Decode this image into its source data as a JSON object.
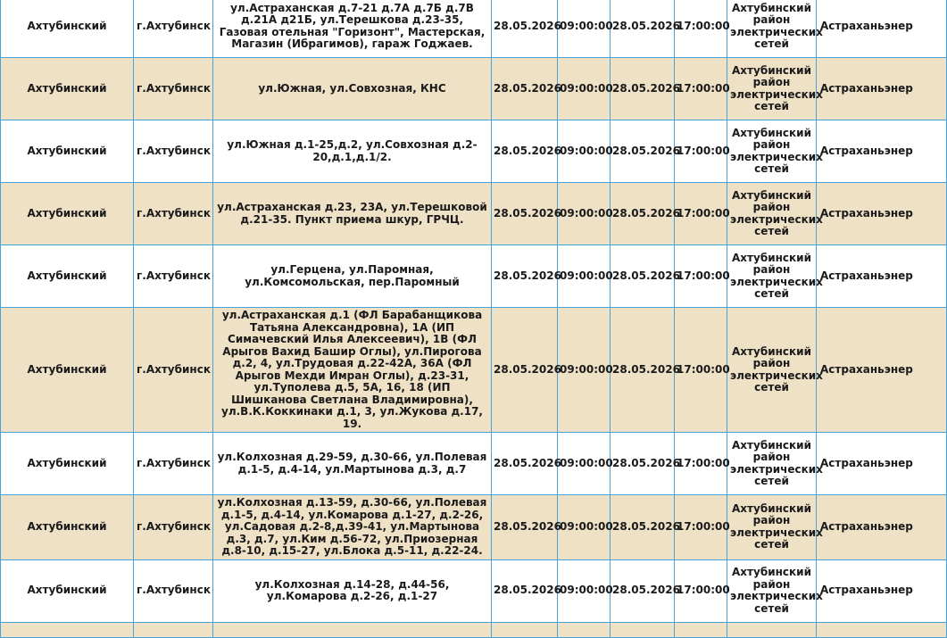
{
  "rows": [
    {
      "district": "Ахтубинский",
      "city": "г.Ахтубинск",
      "address": "ул.Астраханская д.7-21 д.7А д.7Б д.7В д.21А д21Б, ул.Терешкова д.23-35, Газовая отельная \"Горизонт\", Мастерская, Магазин (Ибрагимов), гараж Годжаев.",
      "start_date": "28.05.2026",
      "start_time": "09:00:00",
      "end_date": "28.05.2026",
      "end_time": "17:00:00",
      "network": "Ахтубинский район электрических сетей",
      "org": "Астраханьэнер"
    },
    {
      "district": "Ахтубинский",
      "city": "г.Ахтубинск",
      "address": "ул.Южная, ул.Совхозная, КНС",
      "start_date": "28.05.2026",
      "start_time": "09:00:00",
      "end_date": "28.05.2026",
      "end_time": "17:00:00",
      "network": "Ахтубинский район электрических сетей",
      "org": "Астраханьэнер"
    },
    {
      "district": "Ахтубинский",
      "city": "г.Ахтубинск",
      "address": "ул.Южная д.1-25,д.2, ул.Совхозная д.2-20,д.1,д.1/2.",
      "start_date": "28.05.2026",
      "start_time": "09:00:00",
      "end_date": "28.05.2026",
      "end_time": "17:00:00",
      "network": "Ахтубинский район электрических сетей",
      "org": "Астраханьэнер"
    },
    {
      "district": "Ахтубинский",
      "city": "г.Ахтубинск",
      "address": "ул.Астраханская д.23, 23А, ул.Терешковой д.21-35. Пункт приема шкур, ГРЧЦ.",
      "start_date": "28.05.2026",
      "start_time": "09:00:00",
      "end_date": "28.05.2026",
      "end_time": "17:00:00",
      "network": "Ахтубинский район электрических сетей",
      "org": "Астраханьэнер"
    },
    {
      "district": "Ахтубинский",
      "city": "г.Ахтубинск",
      "address": "ул.Герцена, ул.Паромная, ул.Комсомольская, пер.Паромный",
      "start_date": "28.05.2026",
      "start_time": "09:00:00",
      "end_date": "28.05.2026",
      "end_time": "17:00:00",
      "network": "Ахтубинский район электрических сетей",
      "org": "Астраханьэнер"
    },
    {
      "district": "Ахтубинский",
      "city": "г.Ахтубинск",
      "address": "ул.Астраханская д.1 (ФЛ Барабанщикова Татьяна Александровна), 1А (ИП Симачевский Илья Алексеевич), 1В (ФЛ Арыгов Вахид Башир Оглы), ул.Пирогова д.2, 4, ул.Трудовая д.22-42А, 36А (ФЛ Арыгов Мехди Имран Оглы), д.23-31, ул.Туполева д.5, 5А, 16, 18 (ИП Шишканова Светлана Владимировна), ул.В.К.Коккинаки д.1, 3, ул.Жукова д.17, 19.",
      "start_date": "28.05.2026",
      "start_time": "09:00:00",
      "end_date": "28.05.2026",
      "end_time": "17:00:00",
      "network": "Ахтубинский район электрических сетей",
      "org": "Астраханьэнер"
    },
    {
      "district": "Ахтубинский",
      "city": "г.Ахтубинск",
      "address": "ул.Колхозная д.29-59, д.30-66, ул.Полевая д.1-5, д.4-14, ул.Мартынова д.3, д.7",
      "start_date": "28.05.2026",
      "start_time": "09:00:00",
      "end_date": "28.05.2026",
      "end_time": "17:00:00",
      "network": "Ахтубинский район электрических сетей",
      "org": "Астраханьэнер"
    },
    {
      "district": "Ахтубинский",
      "city": "г.Ахтубинск",
      "address": "ул.Колхозная д.13-59, д.30-66, ул.Полевая д.1-5, д.4-14, ул.Комарова д.1-27, д.2-26, ул.Садовая д.2-8,д.39-41, ул.Мартынова д.3, д.7, ул.Ким д.56-72, ул.Приозерная д.8-10, д.15-27, ул.Блока д.5-11, д.22-24.",
      "start_date": "28.05.2026",
      "start_time": "09:00:00",
      "end_date": "28.05.2026",
      "end_time": "17:00:00",
      "network": "Ахтубинский район электрических сетей",
      "org": "Астраханьэнер"
    },
    {
      "district": "Ахтубинский",
      "city": "г.Ахтубинск",
      "address": "ул.Колхозная д.14-28, д.44-56, ул.Комарова д.2-26, д.1-27",
      "start_date": "28.05.2026",
      "start_time": "09:00:00",
      "end_date": "28.05.2026",
      "end_time": "17:00:00",
      "network": "Ахтубинский район электрических сетей",
      "org": "Астраханьэнер"
    }
  ]
}
